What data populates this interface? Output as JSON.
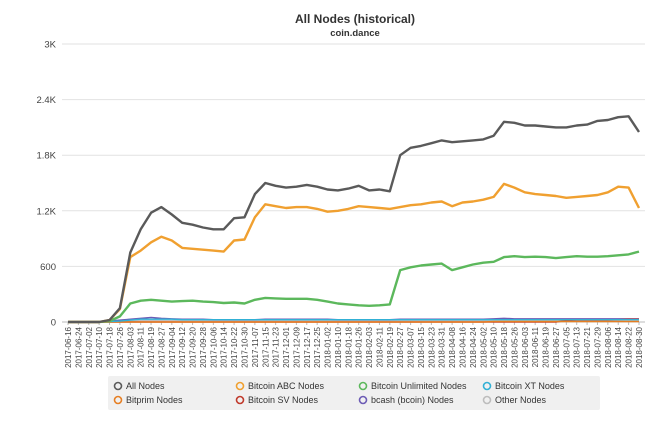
{
  "chart_data": {
    "type": "line",
    "title": "All Nodes (historical)",
    "subtitle": "coin.dance",
    "xlabel": "",
    "ylabel": "",
    "ylim": [
      0,
      3000
    ],
    "yticks": [
      0,
      600,
      1200,
      1800,
      2400,
      3000
    ],
    "ytick_labels": [
      "0",
      "600",
      "1.2K",
      "1.8K",
      "2.4K",
      "3K"
    ],
    "grid": "horizontal",
    "legend_position": "bottom",
    "x": [
      "2017-06-16",
      "2017-06-24",
      "2017-07-02",
      "2017-07-10",
      "2017-07-18",
      "2017-07-26",
      "2017-08-03",
      "2017-08-11",
      "2017-08-19",
      "2017-08-27",
      "2017-09-04",
      "2017-09-12",
      "2017-09-20",
      "2017-09-28",
      "2017-10-06",
      "2017-10-14",
      "2017-10-22",
      "2017-10-30",
      "2017-11-07",
      "2017-11-15",
      "2017-11-23",
      "2017-12-01",
      "2017-12-09",
      "2017-12-17",
      "2017-12-25",
      "2018-01-02",
      "2018-01-10",
      "2018-01-18",
      "2018-01-26",
      "2018-02-03",
      "2018-02-11",
      "2018-02-19",
      "2018-02-27",
      "2018-03-07",
      "2018-03-15",
      "2018-03-23",
      "2018-03-31",
      "2018-04-08",
      "2018-04-16",
      "2018-04-24",
      "2018-05-02",
      "2018-05-10",
      "2018-05-18",
      "2018-05-26",
      "2018-06-03",
      "2018-06-11",
      "2018-06-19",
      "2018-06-27",
      "2018-07-05",
      "2018-07-13",
      "2018-07-21",
      "2018-07-29",
      "2018-08-06",
      "2018-08-14",
      "2018-08-22",
      "2018-08-30"
    ],
    "series": [
      {
        "name": "All Nodes",
        "color": "#5a5a5a",
        "values": [
          0,
          0,
          0,
          0,
          20,
          150,
          750,
          1000,
          1180,
          1240,
          1160,
          1070,
          1050,
          1020,
          1000,
          1000,
          1120,
          1130,
          1380,
          1500,
          1470,
          1450,
          1460,
          1480,
          1460,
          1430,
          1420,
          1440,
          1470,
          1420,
          1430,
          1410,
          1800,
          1880,
          1900,
          1930,
          1960,
          1940,
          1950,
          1960,
          1970,
          2010,
          2160,
          2150,
          2120,
          2120,
          2110,
          2100,
          2100,
          2120,
          2130,
          2170,
          2180,
          2210,
          2220,
          2050
        ]
      },
      {
        "name": "Bitcoin ABC Nodes",
        "color": "#f0a030",
        "values": [
          0,
          0,
          0,
          0,
          20,
          140,
          700,
          770,
          860,
          920,
          880,
          800,
          790,
          780,
          770,
          760,
          880,
          890,
          1130,
          1270,
          1250,
          1230,
          1240,
          1240,
          1220,
          1190,
          1200,
          1220,
          1250,
          1240,
          1230,
          1220,
          1240,
          1260,
          1270,
          1290,
          1300,
          1250,
          1290,
          1300,
          1320,
          1350,
          1490,
          1450,
          1400,
          1380,
          1370,
          1360,
          1340,
          1350,
          1360,
          1370,
          1400,
          1460,
          1450,
          1230
        ]
      },
      {
        "name": "Bitcoin Unlimited Nodes",
        "color": "#5cb85c",
        "values": [
          0,
          0,
          0,
          0,
          10,
          60,
          200,
          230,
          240,
          230,
          220,
          225,
          230,
          220,
          215,
          205,
          210,
          200,
          240,
          260,
          255,
          250,
          250,
          250,
          240,
          220,
          200,
          190,
          180,
          175,
          180,
          190,
          560,
          590,
          610,
          620,
          630,
          560,
          590,
          620,
          640,
          650,
          700,
          710,
          700,
          705,
          700,
          690,
          700,
          710,
          705,
          705,
          710,
          720,
          730,
          760
        ]
      },
      {
        "name": "Bitcoin XT Nodes",
        "color": "#31b0d5",
        "values": [
          0,
          0,
          0,
          0,
          5,
          10,
          20,
          30,
          30,
          30,
          30,
          25,
          25,
          25,
          25,
          25,
          25,
          25,
          25,
          25,
          25,
          25,
          25,
          25,
          25,
          25,
          25,
          25,
          25,
          25,
          25,
          25,
          25,
          25,
          25,
          25,
          25,
          25,
          25,
          25,
          25,
          25,
          25,
          25,
          25,
          25,
          25,
          25,
          25,
          25,
          25,
          25,
          25,
          25,
          25,
          25
        ]
      },
      {
        "name": "Bitprim Nodes",
        "color": "#e67e22",
        "values": [
          0,
          0,
          0,
          0,
          0,
          0,
          0,
          0,
          0,
          0,
          0,
          0,
          0,
          0,
          0,
          0,
          0,
          0,
          0,
          0,
          0,
          0,
          0,
          0,
          0,
          0,
          0,
          0,
          0,
          0,
          0,
          0,
          0,
          0,
          0,
          0,
          0,
          0,
          0,
          0,
          0,
          5,
          5,
          5,
          5,
          5,
          5,
          5,
          5,
          5,
          5,
          5,
          5,
          5,
          5,
          5
        ]
      },
      {
        "name": "Bitcoin SV Nodes",
        "color": "#c0392b",
        "values": [
          0,
          0,
          0,
          0,
          0,
          0,
          0,
          0,
          0,
          0,
          0,
          0,
          0,
          0,
          0,
          0,
          0,
          0,
          0,
          0,
          0,
          0,
          0,
          0,
          0,
          0,
          0,
          0,
          0,
          0,
          0,
          0,
          0,
          0,
          0,
          0,
          0,
          0,
          0,
          0,
          0,
          0,
          0,
          0,
          0,
          0,
          0,
          0,
          15,
          20,
          20,
          20,
          20,
          25,
          30,
          30
        ]
      },
      {
        "name": "bcash (bcoin) Nodes",
        "color": "#6c5bb5",
        "values": [
          0,
          0,
          0,
          0,
          10,
          20,
          30,
          40,
          50,
          40,
          35,
          30,
          30,
          30,
          25,
          25,
          25,
          25,
          25,
          30,
          30,
          30,
          30,
          30,
          30,
          30,
          25,
          25,
          25,
          25,
          25,
          25,
          30,
          30,
          30,
          30,
          30,
          30,
          30,
          30,
          30,
          35,
          40,
          35,
          35,
          35,
          35,
          35,
          35,
          35,
          35,
          35,
          35,
          35,
          35,
          35
        ]
      },
      {
        "name": "Other Nodes",
        "color": "#bdbdbd",
        "values": [
          0,
          0,
          0,
          0,
          0,
          5,
          10,
          15,
          15,
          15,
          15,
          15,
          15,
          15,
          15,
          15,
          15,
          15,
          15,
          15,
          15,
          15,
          15,
          15,
          15,
          15,
          15,
          15,
          15,
          15,
          15,
          15,
          15,
          15,
          15,
          15,
          15,
          15,
          15,
          15,
          15,
          20,
          20,
          20,
          20,
          20,
          20,
          20,
          20,
          20,
          20,
          20,
          20,
          20,
          20,
          20
        ]
      }
    ]
  }
}
